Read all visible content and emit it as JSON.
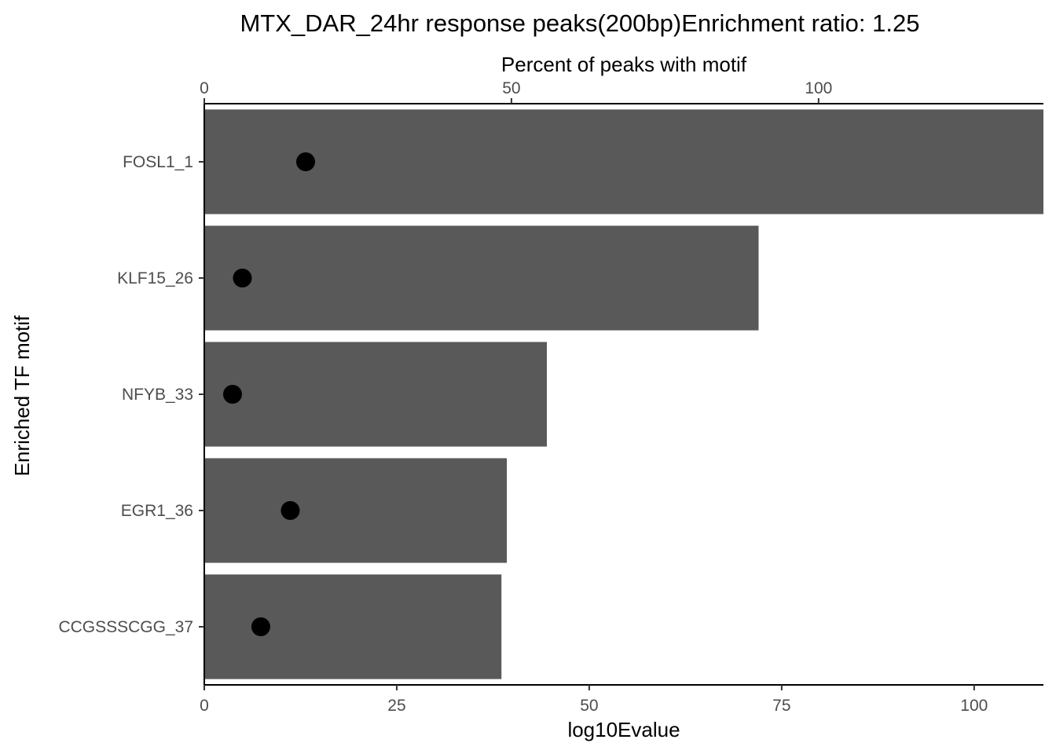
{
  "chart_data": {
    "type": "bar",
    "title": "MTX_DAR_24hr response peaks(200bp)Enrichment ratio: 1.25",
    "xlabel": "log10Evalue",
    "ylabel": "Enriched TF motif",
    "x2label": "Percent of peaks with motif",
    "categories": [
      "FOSL1_1",
      "KLF15_26",
      "NFYB_33",
      "EGR1_36",
      "CCGSSSCGG_37"
    ],
    "series": [
      {
        "values": [
          109,
          72,
          44.5,
          39.3,
          38.6
        ],
        "color": "#595959",
        "axis": "bottom",
        "mark": "bar"
      },
      {
        "values": [
          16.5,
          6.2,
          4.6,
          14,
          9.2
        ],
        "color": "#000000",
        "axis": "top",
        "mark": "point"
      }
    ],
    "xlim": [
      0,
      109
    ],
    "x_ticks": [
      0,
      25,
      50,
      75,
      100
    ],
    "x2lim": [
      0,
      136.6
    ],
    "x2_ticks": [
      0,
      50,
      100
    ],
    "grid": false,
    "legend": "none"
  }
}
